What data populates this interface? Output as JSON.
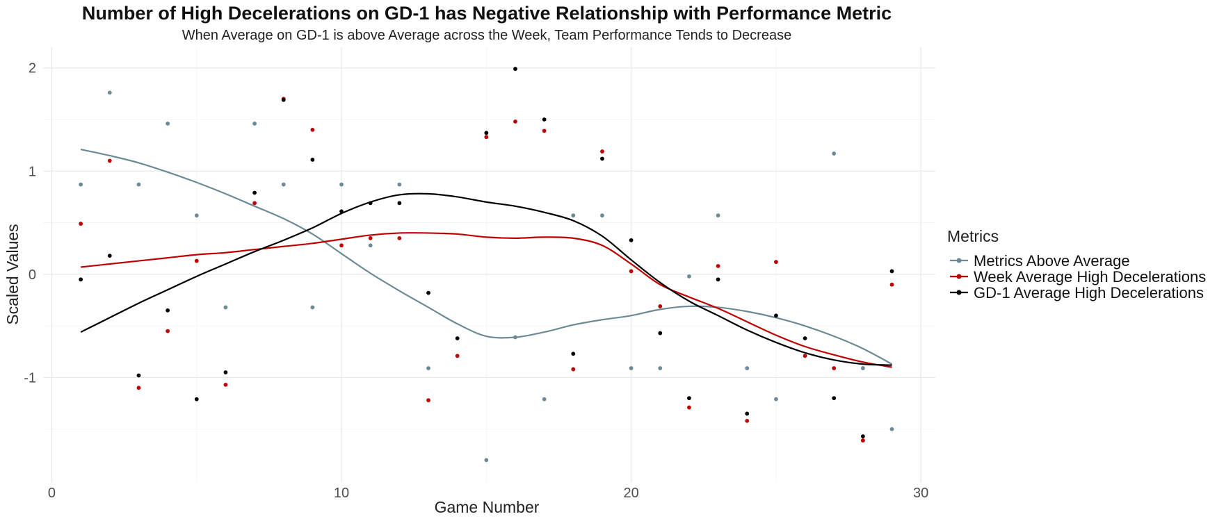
{
  "chart_data": {
    "type": "scatter",
    "title": "Number of High Decelerations on GD-1 has Negative Relationship with Performance Metric",
    "subtitle": "When Average on GD-1 is above Average across the Week, Team Performance Tends to Decrease",
    "xlabel": "Game Number",
    "ylabel": "Scaled Values",
    "xlim": [
      -0.3,
      30.5
    ],
    "ylim": [
      -2.02,
      2.2
    ],
    "x_ticks": [
      0,
      10,
      20,
      30
    ],
    "y_ticks": [
      -1,
      0,
      1,
      2
    ],
    "grid": true,
    "legend": {
      "title": "Metrics",
      "position": "right"
    },
    "series": [
      {
        "name": "Metrics Above Average",
        "color": "#6b8a96",
        "points": [
          [
            1,
            0.87
          ],
          [
            2,
            1.76
          ],
          [
            3,
            0.87
          ],
          [
            4,
            1.46
          ],
          [
            5,
            0.57
          ],
          [
            6,
            -0.32
          ],
          [
            7,
            1.46
          ],
          [
            8,
            0.87
          ],
          [
            9,
            -0.32
          ],
          [
            10,
            0.87
          ],
          [
            11,
            0.28
          ],
          [
            12,
            0.87
          ],
          [
            13,
            -0.91
          ],
          [
            15,
            -1.8
          ],
          [
            16,
            -0.61
          ],
          [
            17,
            -1.21
          ],
          [
            18,
            0.57
          ],
          [
            19,
            0.57
          ],
          [
            20,
            -0.91
          ],
          [
            21,
            -0.91
          ],
          [
            22,
            -0.02
          ],
          [
            23,
            0.57
          ],
          [
            24,
            -0.91
          ],
          [
            25,
            -1.21
          ],
          [
            27,
            1.17
          ],
          [
            28,
            -0.91
          ],
          [
            29,
            -1.5
          ]
        ],
        "smooth": [
          [
            1,
            1.21
          ],
          [
            2,
            1.15
          ],
          [
            3,
            1.08
          ],
          [
            4,
            0.99
          ],
          [
            5,
            0.89
          ],
          [
            6,
            0.78
          ],
          [
            7,
            0.66
          ],
          [
            8,
            0.54
          ],
          [
            9,
            0.39
          ],
          [
            10,
            0.2
          ],
          [
            11,
            0.01
          ],
          [
            12,
            -0.16
          ],
          [
            13,
            -0.32
          ],
          [
            14,
            -0.48
          ],
          [
            15,
            -0.6
          ],
          [
            16,
            -0.61
          ],
          [
            17,
            -0.56
          ],
          [
            18,
            -0.49
          ],
          [
            19,
            -0.44
          ],
          [
            20,
            -0.4
          ],
          [
            21,
            -0.34
          ],
          [
            22,
            -0.31
          ],
          [
            23,
            -0.32
          ],
          [
            24,
            -0.36
          ],
          [
            25,
            -0.42
          ],
          [
            26,
            -0.5
          ],
          [
            27,
            -0.6
          ],
          [
            28,
            -0.72
          ],
          [
            29,
            -0.87
          ]
        ]
      },
      {
        "name": "Week Average High Decelerations",
        "color": "#c00000",
        "points": [
          [
            1,
            0.49
          ],
          [
            2,
            1.1
          ],
          [
            3,
            -1.1
          ],
          [
            4,
            -0.55
          ],
          [
            5,
            0.13
          ],
          [
            6,
            -1.07
          ],
          [
            7,
            0.69
          ],
          [
            8,
            1.7
          ],
          [
            9,
            1.4
          ],
          [
            10,
            0.28
          ],
          [
            11,
            0.35
          ],
          [
            12,
            0.35
          ],
          [
            13,
            -1.22
          ],
          [
            14,
            -0.79
          ],
          [
            15,
            1.33
          ],
          [
            16,
            1.48
          ],
          [
            17,
            1.39
          ],
          [
            18,
            -0.92
          ],
          [
            19,
            1.19
          ],
          [
            20,
            0.03
          ],
          [
            21,
            -0.31
          ],
          [
            22,
            -1.29
          ],
          [
            23,
            0.08
          ],
          [
            24,
            -1.42
          ],
          [
            25,
            0.12
          ],
          [
            26,
            -0.79
          ],
          [
            27,
            -0.91
          ],
          [
            28,
            -1.61
          ],
          [
            29,
            -0.1
          ]
        ],
        "smooth": [
          [
            1,
            0.07
          ],
          [
            2,
            0.1
          ],
          [
            3,
            0.13
          ],
          [
            4,
            0.16
          ],
          [
            5,
            0.19
          ],
          [
            6,
            0.21
          ],
          [
            7,
            0.24
          ],
          [
            8,
            0.27
          ],
          [
            9,
            0.3
          ],
          [
            10,
            0.34
          ],
          [
            11,
            0.38
          ],
          [
            12,
            0.4
          ],
          [
            13,
            0.4
          ],
          [
            14,
            0.39
          ],
          [
            15,
            0.36
          ],
          [
            16,
            0.35
          ],
          [
            17,
            0.36
          ],
          [
            18,
            0.35
          ],
          [
            19,
            0.28
          ],
          [
            20,
            0.1
          ],
          [
            21,
            -0.1
          ],
          [
            22,
            -0.22
          ],
          [
            23,
            -0.33
          ],
          [
            24,
            -0.46
          ],
          [
            25,
            -0.59
          ],
          [
            26,
            -0.7
          ],
          [
            27,
            -0.78
          ],
          [
            28,
            -0.85
          ],
          [
            29,
            -0.9
          ]
        ]
      },
      {
        "name": "GD-1 Average High Decelerations",
        "color": "#000000",
        "points": [
          [
            1,
            -0.05
          ],
          [
            2,
            0.18
          ],
          [
            3,
            -0.98
          ],
          [
            4,
            -0.35
          ],
          [
            5,
            -1.21
          ],
          [
            6,
            -0.95
          ],
          [
            7,
            0.79
          ],
          [
            8,
            1.69
          ],
          [
            9,
            1.11
          ],
          [
            10,
            0.61
          ],
          [
            11,
            0.69
          ],
          [
            12,
            0.69
          ],
          [
            13,
            -0.18
          ],
          [
            14,
            -0.62
          ],
          [
            15,
            1.37
          ],
          [
            16,
            1.99
          ],
          [
            17,
            1.5
          ],
          [
            18,
            -0.77
          ],
          [
            19,
            1.12
          ],
          [
            20,
            0.33
          ],
          [
            21,
            -0.57
          ],
          [
            22,
            -1.2
          ],
          [
            23,
            -0.05
          ],
          [
            24,
            -1.35
          ],
          [
            25,
            -0.4
          ],
          [
            26,
            -0.62
          ],
          [
            27,
            -1.2
          ],
          [
            28,
            -1.57
          ],
          [
            29,
            0.03
          ]
        ],
        "smooth": [
          [
            1,
            -0.56
          ],
          [
            2,
            -0.42
          ],
          [
            3,
            -0.28
          ],
          [
            4,
            -0.15
          ],
          [
            5,
            -0.02
          ],
          [
            6,
            0.1
          ],
          [
            7,
            0.22
          ],
          [
            8,
            0.33
          ],
          [
            9,
            0.45
          ],
          [
            10,
            0.59
          ],
          [
            11,
            0.7
          ],
          [
            12,
            0.77
          ],
          [
            13,
            0.78
          ],
          [
            14,
            0.75
          ],
          [
            15,
            0.7
          ],
          [
            16,
            0.66
          ],
          [
            17,
            0.6
          ],
          [
            18,
            0.52
          ],
          [
            19,
            0.37
          ],
          [
            20,
            0.14
          ],
          [
            21,
            -0.08
          ],
          [
            22,
            -0.26
          ],
          [
            23,
            -0.4
          ],
          [
            24,
            -0.54
          ],
          [
            25,
            -0.66
          ],
          [
            26,
            -0.76
          ],
          [
            27,
            -0.83
          ],
          [
            28,
            -0.87
          ],
          [
            29,
            -0.88
          ]
        ]
      }
    ]
  }
}
